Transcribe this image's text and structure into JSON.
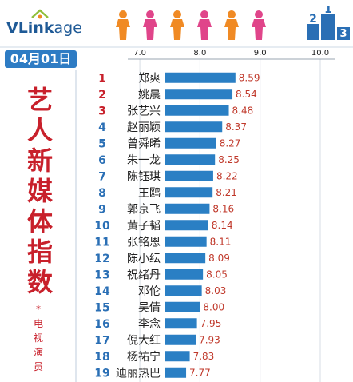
{
  "brand": {
    "logo_text_a": "VLink",
    "logo_text_b": "age"
  },
  "date": "04月01日",
  "side_title": [
    "艺",
    "人",
    "新",
    "媒",
    "体",
    "指",
    "数"
  ],
  "side_subtitle": [
    "*",
    "电",
    "视",
    "演",
    "员"
  ],
  "colors": {
    "bar": "#2a7fc4",
    "value_text": "#c0392b",
    "top_rank": "#c8202b",
    "rank": "#2a6fb5",
    "person_orange": "#f08a24",
    "person_pink": "#e0458a"
  },
  "chart_data": {
    "type": "bar",
    "orientation": "horizontal",
    "title": "",
    "xlabel": "",
    "ylabel": "",
    "xlim": [
      6.8,
      10.0
    ],
    "ticks": [
      "7.0",
      "8.0",
      "9.0",
      "10.0"
    ],
    "tick_values": [
      7.0,
      8.0,
      9.0,
      10.0
    ],
    "grid": true,
    "ranks": [
      "1",
      "2",
      "3",
      "4",
      "5",
      "6",
      "7",
      "8",
      "9",
      "10",
      "11",
      "12",
      "13",
      "14",
      "15",
      "16",
      "17",
      "18",
      "19"
    ],
    "categories": [
      "郑爽",
      "姚晨",
      "张艺兴",
      "赵丽颖",
      "曾舜晞",
      "朱一龙",
      "陈钰琪",
      "王鸥",
      "郭京飞",
      "黄子韬",
      "张铭恩",
      "陈小纭",
      "祝绪丹",
      "邓伦",
      "吴倩",
      "李念",
      "倪大红",
      "杨祐宁",
      "迪丽热巴"
    ],
    "values": [
      8.59,
      8.54,
      8.48,
      8.37,
      8.27,
      8.25,
      8.22,
      8.21,
      8.16,
      8.14,
      8.11,
      8.09,
      8.05,
      8.03,
      8.0,
      7.95,
      7.93,
      7.83,
      7.77
    ],
    "value_labels": [
      "8.59",
      "8.54",
      "8.48",
      "8.37",
      "8.27",
      "8.25",
      "8.22",
      "8.21",
      "8.16",
      "8.14",
      "8.11",
      "8.09",
      "8.05",
      "8.03",
      "8.00",
      "7.95",
      "7.93",
      "7.83",
      "7.77"
    ]
  }
}
